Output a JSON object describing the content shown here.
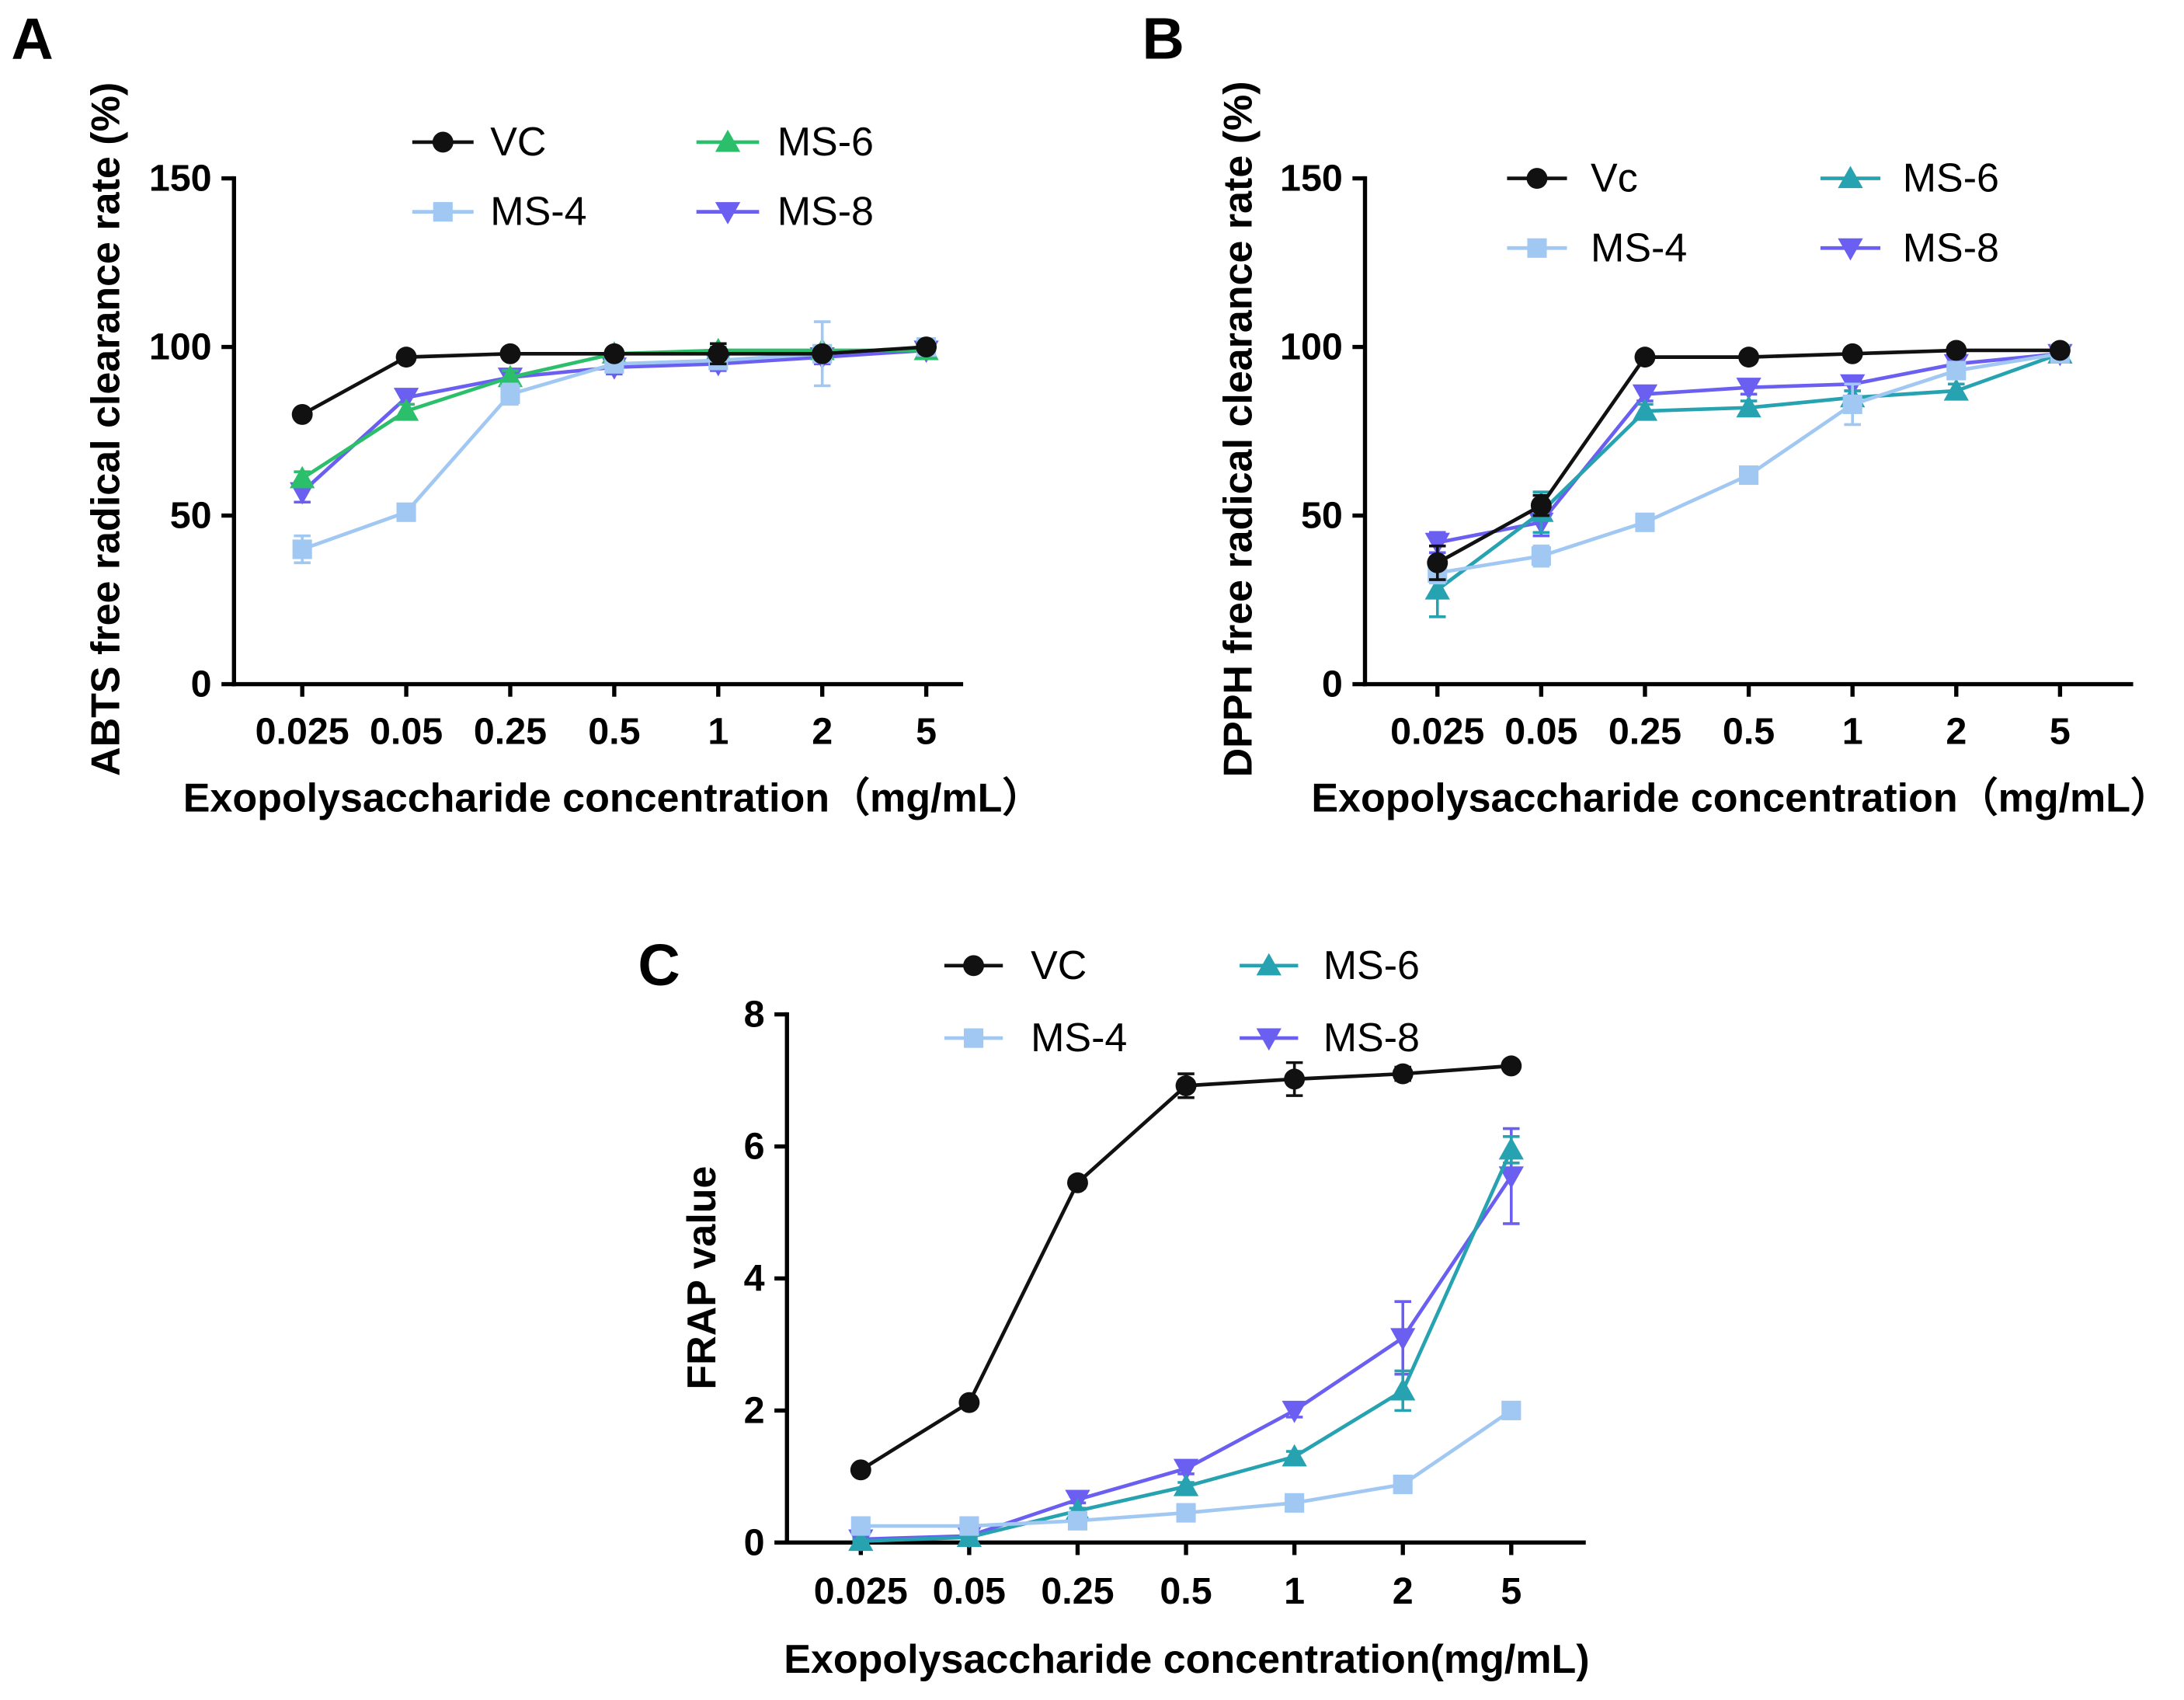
{
  "chart_data": [
    {
      "label": "A",
      "type": "line",
      "categories": [
        "0.025",
        "0.05",
        "0.25",
        "0.5",
        "1",
        "2",
        "5"
      ],
      "xlabel": "Exopolysaccharide concentration（mg/mL）",
      "ylabel": "ABTS free radical clearance rate (%)",
      "ylim": [
        0,
        150
      ],
      "yticks": [
        0,
        50,
        100,
        150
      ],
      "grid": false,
      "legend": "top",
      "series": [
        {
          "name": "VC",
          "marker": "circle",
          "color": "#111111",
          "values": [
            80,
            97,
            98,
            98,
            98,
            98,
            100
          ],
          "errors": [
            1,
            1,
            1,
            1,
            3,
            1,
            1
          ]
        },
        {
          "name": "MS-4",
          "marker": "square",
          "color": "#a0c8f2",
          "values": [
            40,
            51,
            86,
            95,
            96,
            98,
            100
          ],
          "errors": [
            4,
            2,
            3,
            2,
            2,
            9.5,
            1
          ]
        },
        {
          "name": "MS-6",
          "marker": "triangle-up",
          "color": "#2cbf6b",
          "values": [
            61,
            81,
            91,
            98,
            99,
            99,
            99
          ],
          "errors": [
            2,
            2,
            2,
            1,
            1,
            1,
            1
          ]
        },
        {
          "name": "MS-8",
          "marker": "triangle-down",
          "color": "#6a5ff0",
          "values": [
            57,
            85,
            91,
            94,
            95,
            97,
            99
          ],
          "errors": [
            3,
            2,
            2,
            2,
            2,
            2,
            1
          ]
        }
      ]
    },
    {
      "label": "B",
      "type": "line",
      "categories": [
        "0.025",
        "0.05",
        "0.25",
        "0.5",
        "1",
        "2",
        "5"
      ],
      "xlabel": "Exopolysaccharide concentration（mg/mL）",
      "ylabel": "DPPH free radical clearance rate (%)",
      "ylim": [
        0,
        150
      ],
      "yticks": [
        0,
        50,
        100,
        150
      ],
      "grid": false,
      "legend": "top",
      "series": [
        {
          "name": "Vc",
          "marker": "circle",
          "color": "#111111",
          "values": [
            36,
            53,
            97,
            97,
            98,
            99,
            99
          ],
          "errors": [
            5,
            3,
            1,
            1,
            1,
            1,
            1
          ]
        },
        {
          "name": "MS-4",
          "marker": "square",
          "color": "#a0c8f2",
          "values": [
            33,
            38,
            48,
            62,
            83,
            93,
            98
          ],
          "errors": [
            3,
            3,
            2,
            2,
            6,
            2,
            1
          ]
        },
        {
          "name": "MS-6",
          "marker": "triangle-up",
          "color": "#27a2b0",
          "values": [
            28,
            51,
            81,
            82,
            85,
            87,
            98
          ],
          "errors": [
            8,
            6,
            2,
            2,
            2,
            2,
            1
          ]
        },
        {
          "name": "MS-8",
          "marker": "triangle-down",
          "color": "#6a5ff0",
          "values": [
            42,
            48,
            86,
            88,
            89,
            95,
            98
          ],
          "errors": [
            3,
            4,
            2,
            2,
            2,
            2,
            1
          ]
        }
      ]
    },
    {
      "label": "C",
      "type": "line",
      "categories": [
        "0.025",
        "0.05",
        "0.25",
        "0.5",
        "1",
        "2",
        "5"
      ],
      "xlabel": "Exopolysaccharide concentration(mg/mL)",
      "ylabel": "FRAP value",
      "ylim": [
        0,
        8
      ],
      "yticks": [
        0,
        2,
        4,
        6,
        8
      ],
      "grid": false,
      "legend": "top",
      "series": [
        {
          "name": "VC",
          "marker": "circle",
          "color": "#111111",
          "values": [
            1.1,
            2.12,
            5.45,
            6.92,
            7.02,
            7.1,
            7.22
          ],
          "errors": [
            0.05,
            0.05,
            0.08,
            0.18,
            0.25,
            0.1,
            0.05
          ]
        },
        {
          "name": "MS-4",
          "marker": "square",
          "color": "#a0c8f2",
          "values": [
            0.25,
            0.25,
            0.33,
            0.45,
            0.6,
            0.88,
            2.0
          ],
          "errors": [
            0.03,
            0.03,
            0.03,
            0.04,
            0.05,
            0.06,
            0.08
          ]
        },
        {
          "name": "MS-6",
          "marker": "triangle-up",
          "color": "#27a2b0",
          "values": [
            0.02,
            0.08,
            0.48,
            0.85,
            1.3,
            2.3,
            5.95
          ],
          "errors": [
            0.02,
            0.02,
            0.04,
            0.06,
            0.08,
            0.3,
            0.2
          ]
        },
        {
          "name": "MS-8",
          "marker": "triangle-down",
          "color": "#6a5ff0",
          "values": [
            0.05,
            0.1,
            0.65,
            1.12,
            2.0,
            3.1,
            5.55
          ],
          "errors": [
            0.02,
            0.02,
            0.05,
            0.08,
            0.1,
            0.55,
            0.72
          ]
        }
      ]
    }
  ]
}
